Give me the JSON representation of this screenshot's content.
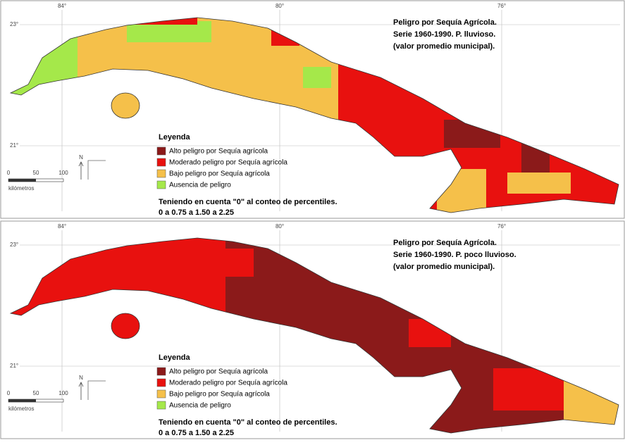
{
  "maps": [
    {
      "title_lines": [
        "Peligro por Sequía Agrícola.",
        "Serie 1960-1990. P. lluvioso.",
        "(valor promedio municipal)."
      ],
      "graticule": {
        "lon": [
          "84°",
          "80°",
          "76°"
        ],
        "lat": [
          "23°",
          "21°"
        ]
      },
      "legend": {
        "title": "Leyenda",
        "items": [
          {
            "label": "Alto peligro por Sequía agrícola",
            "color": "#8b1a1a"
          },
          {
            "label": "Moderado peligro por Sequía agrícola",
            "color": "#e8110f"
          },
          {
            "label": "Bajo peligro por Sequía agrícola",
            "color": "#f5c04a"
          },
          {
            "label": "Ausencia de peligro",
            "color": "#a5e84a"
          }
        ]
      },
      "note": "Teniendo en cuenta \"0\" al conteo de percentiles.",
      "range": "0 a 0.75 a 1.50 a 2.25",
      "scale": {
        "ticks": [
          "0",
          "50",
          "100"
        ],
        "unit": "kilómetros"
      },
      "north": "N"
    },
    {
      "title_lines": [
        "Peligro por Sequía Agrícola.",
        "Serie 1960-1990. P. poco lluvioso.",
        "(valor promedio municipal)."
      ],
      "graticule": {
        "lon": [
          "84°",
          "80°",
          "76°"
        ],
        "lat": [
          "23°",
          "21°"
        ]
      },
      "legend": {
        "title": "Leyenda",
        "items": [
          {
            "label": "Alto peligro por Sequía agrícola",
            "color": "#8b1a1a"
          },
          {
            "label": "Moderado peligro por Sequía agrícola",
            "color": "#e8110f"
          },
          {
            "label": "Bajo peligro por Sequía agrícola",
            "color": "#f5c04a"
          },
          {
            "label": "Ausencia de peligro",
            "color": "#a5e84a"
          }
        ]
      },
      "note": "Teniendo en cuenta \"0\" al conteo de percentiles.",
      "range": "0 a 0.75 a 1.50 a 2.25",
      "scale": {
        "ticks": [
          "0",
          "50",
          "100"
        ],
        "unit": "kilómetros"
      },
      "north": "N"
    }
  ]
}
